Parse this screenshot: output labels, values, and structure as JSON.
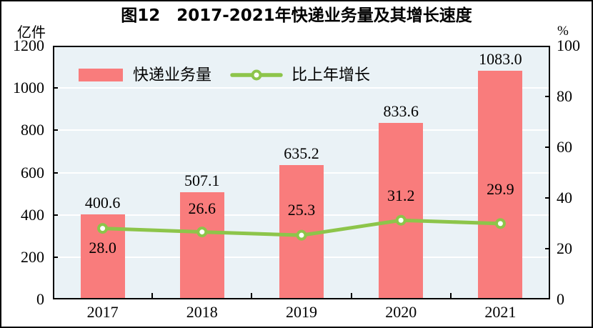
{
  "figure": {
    "title": "图12　2017-2021年快递业务量及其增长速度",
    "left_unit": "亿件",
    "right_unit": "%"
  },
  "legend": {
    "bar_label": "快递业务量",
    "line_label": "比上年增长"
  },
  "colors": {
    "bar": "#F97C7C",
    "line": "#8DC54A",
    "marker_fill": "#FFFFFF",
    "plot_bg": "#EAF2F6",
    "grid": "#FFFFFF",
    "axis": "#000000",
    "text": "#000000"
  },
  "chart_data": {
    "type": "bar",
    "title": "图12　2017-2021年快递业务量及其增长速度",
    "categories": [
      "2017",
      "2018",
      "2019",
      "2020",
      "2021"
    ],
    "series": [
      {
        "name": "快递业务量",
        "type": "bar",
        "axis": "left",
        "unit": "亿件",
        "values": [
          400.6,
          507.1,
          635.2,
          833.6,
          1083.0
        ],
        "data_labels": [
          "400.6",
          "507.1",
          "635.2",
          "833.6",
          "1083.0"
        ]
      },
      {
        "name": "比上年增长",
        "type": "line",
        "axis": "right",
        "unit": "%",
        "values": [
          28.0,
          26.6,
          25.3,
          31.2,
          29.9
        ],
        "data_labels": [
          "28.0",
          "26.6",
          "25.3",
          "31.2",
          "29.9"
        ]
      }
    ],
    "left_axis": {
      "label": "亿件",
      "min": 0,
      "max": 1200,
      "step": 200,
      "ticks": [
        "0",
        "200",
        "400",
        "600",
        "800",
        "1000",
        "1200"
      ]
    },
    "right_axis": {
      "label": "%",
      "min": 0,
      "max": 100,
      "step": 20,
      "ticks": [
        "0",
        "20",
        "40",
        "60",
        "80",
        "100"
      ]
    },
    "grid": true,
    "legend_position": "top-left-inside",
    "rate_label_offsets": [
      27,
      -33,
      -35,
      -34,
      -48
    ]
  }
}
